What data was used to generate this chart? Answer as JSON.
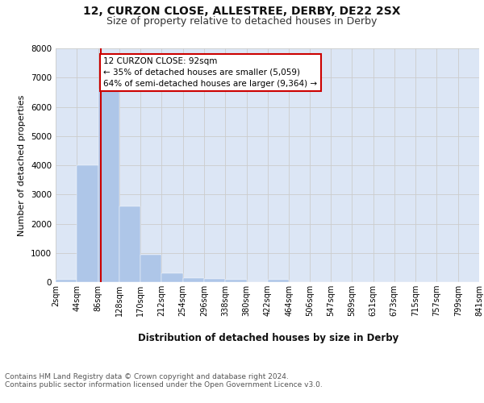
{
  "title1": "12, CURZON CLOSE, ALLESTREE, DERBY, DE22 2SX",
  "title2": "Size of property relative to detached houses in Derby",
  "xlabel": "Distribution of detached houses by size in Derby",
  "ylabel": "Number of detached properties",
  "bar_edges": [
    2,
    44,
    86,
    128,
    170,
    212,
    254,
    296,
    338,
    380,
    422,
    464,
    506,
    547,
    589,
    631,
    673,
    715,
    757,
    799,
    841
  ],
  "bar_heights": [
    80,
    4000,
    6600,
    2600,
    950,
    300,
    130,
    100,
    70,
    0,
    90,
    0,
    0,
    0,
    0,
    0,
    0,
    0,
    0,
    0
  ],
  "bar_color": "#aec6e8",
  "bar_edgecolor": "#aec6e8",
  "grid_color": "#cccccc",
  "bg_color": "#dce6f5",
  "property_line_x": 92,
  "property_line_color": "#cc0000",
  "annotation_text": "12 CURZON CLOSE: 92sqm\n← 35% of detached houses are smaller (5,059)\n64% of semi-detached houses are larger (9,364) →",
  "annotation_box_color": "#ffffff",
  "annotation_border_color": "#cc0000",
  "ylim": [
    0,
    8000
  ],
  "yticks": [
    0,
    1000,
    2000,
    3000,
    4000,
    5000,
    6000,
    7000,
    8000
  ],
  "tick_labels": [
    "2sqm",
    "44sqm",
    "86sqm",
    "128sqm",
    "170sqm",
    "212sqm",
    "254sqm",
    "296sqm",
    "338sqm",
    "380sqm",
    "422sqm",
    "464sqm",
    "506sqm",
    "547sqm",
    "589sqm",
    "631sqm",
    "673sqm",
    "715sqm",
    "757sqm",
    "799sqm",
    "841sqm"
  ],
  "footer": "Contains HM Land Registry data © Crown copyright and database right 2024.\nContains public sector information licensed under the Open Government Licence v3.0.",
  "title1_fontsize": 10,
  "title2_fontsize": 9,
  "xlabel_fontsize": 8.5,
  "ylabel_fontsize": 8,
  "tick_fontsize": 7,
  "footer_fontsize": 6.5
}
